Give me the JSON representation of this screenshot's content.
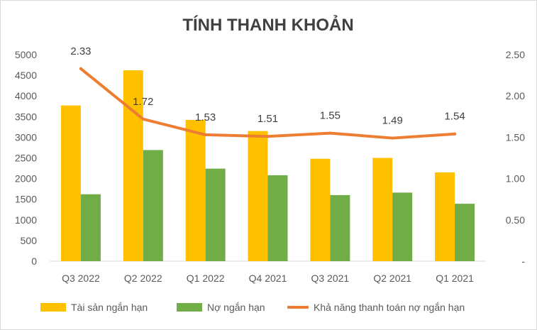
{
  "chart_data": {
    "type": "bar",
    "title": "TÍNH THANH KHOẢN",
    "categories": [
      "Q3 2022",
      "Q2 2022",
      "Q1 2022",
      "Q4 2021",
      "Q3 2021",
      "Q2 2021",
      "Q1 2021"
    ],
    "series": [
      {
        "name": "Tài sản ngắn hạn",
        "type": "bar",
        "axis": "left",
        "color": "#FFC000",
        "values": [
          3770,
          4620,
          3420,
          3150,
          2480,
          2500,
          2150
        ]
      },
      {
        "name": "Nợ ngắn hạn",
        "type": "bar",
        "axis": "left",
        "color": "#70AD47",
        "values": [
          1620,
          2690,
          2240,
          2080,
          1600,
          1660,
          1390
        ]
      },
      {
        "name": "Khả năng thanh toán nợ ngắn hạn",
        "type": "line",
        "axis": "right",
        "color": "#ED7D31",
        "values": [
          2.33,
          1.72,
          1.53,
          1.51,
          1.55,
          1.49,
          1.54
        ],
        "labels": [
          "2.33",
          "1.72",
          "1.53",
          "1.51",
          "1.55",
          "1.49",
          "1.54"
        ]
      }
    ],
    "y_left": {
      "min": 0,
      "max": 5000,
      "ticks": [
        "0",
        "500",
        "1000",
        "1500",
        "2000",
        "2500",
        "3000",
        "3500",
        "4000",
        "4500",
        "5000"
      ]
    },
    "y_right": {
      "min": 0,
      "max": 2.5,
      "ticks": [
        "-",
        "0.50",
        "1.00",
        "1.50",
        "2.00",
        "2.50"
      ]
    },
    "grid": false,
    "legend_position": "bottom"
  }
}
